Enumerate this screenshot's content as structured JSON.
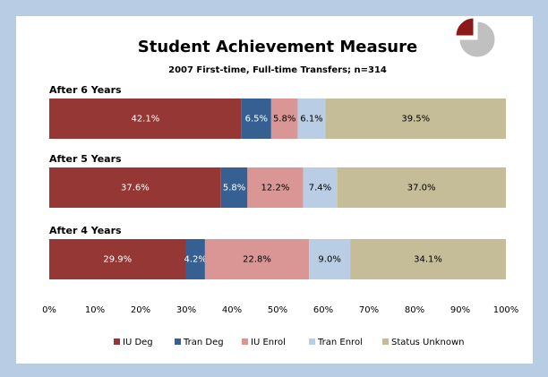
{
  "chart_data": {
    "type": "stacked_bar_horizontal",
    "title": "Student Achievement Measure",
    "subtitle": "2007 First-time, Full-time Transfers; n=314",
    "categories": [
      "After 6 Years",
      "After 5 Years",
      "After 4 Years"
    ],
    "series": [
      {
        "name": "IU Deg",
        "color": "#953735",
        "values": [
          42.1,
          37.6,
          29.9
        ],
        "value_labels": [
          "42.1%",
          "37.6%",
          "29.9%"
        ]
      },
      {
        "name": "Tran Deg",
        "color": "#376092",
        "values": [
          6.5,
          5.8,
          4.2
        ],
        "value_labels": [
          "6.5%",
          "5.8%",
          "4.2%"
        ]
      },
      {
        "name": "IU Enrol",
        "color": "#d99694",
        "values": [
          5.8,
          12.2,
          22.8
        ],
        "value_labels": [
          "5.8%",
          "12.2%",
          "22.8%"
        ]
      },
      {
        "name": "Tran Enrol",
        "color": "#b9cde5",
        "values": [
          6.1,
          7.4,
          9.0
        ],
        "value_labels": [
          "6.1%",
          "7.4%",
          "9.0%"
        ]
      },
      {
        "name": "Status Unknown",
        "color": "#c4bd97",
        "values": [
          39.5,
          37.0,
          34.1
        ],
        "value_labels": [
          "39.5%",
          "37.0%",
          "34.1%"
        ]
      }
    ],
    "xlim": [
      0,
      100
    ],
    "xticks": [
      {
        "value": 0,
        "label": "0%"
      },
      {
        "value": 10,
        "label": "10%"
      },
      {
        "value": 20,
        "label": "20%"
      },
      {
        "value": 30,
        "label": "30%"
      },
      {
        "value": 40,
        "label": "40%"
      },
      {
        "value": 50,
        "label": "50%"
      },
      {
        "value": 60,
        "label": "60%"
      },
      {
        "value": 70,
        "label": "70%"
      },
      {
        "value": 80,
        "label": "80%"
      },
      {
        "value": 90,
        "label": "90%"
      },
      {
        "value": 100,
        "label": "100%"
      }
    ],
    "legend": "bottom"
  }
}
